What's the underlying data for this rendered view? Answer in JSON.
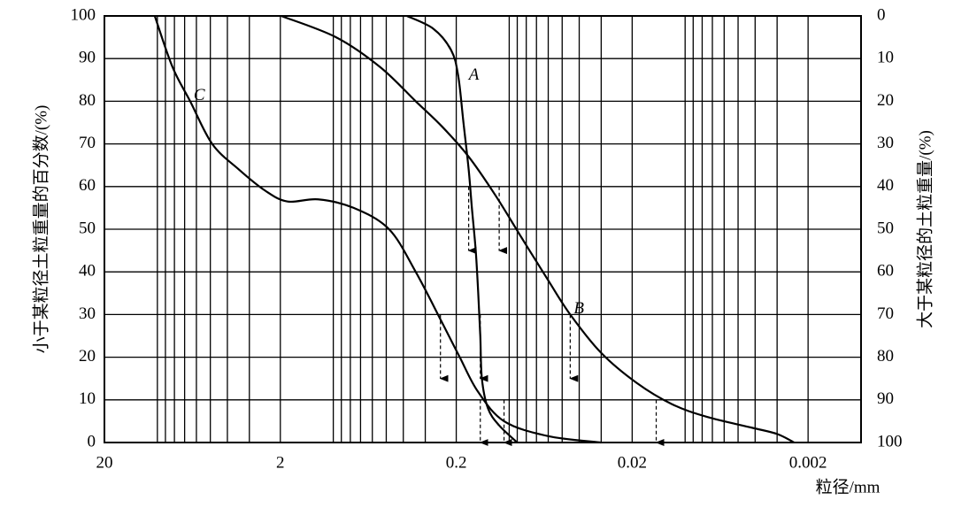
{
  "chart_data": {
    "type": "line",
    "x_label": "粒径/mm",
    "y_label": "小于某粒径土粒重量的百分数/(%)",
    "y2_label": "大于某粒径的土粒重量/(%)",
    "log_x": true,
    "grid": true,
    "color": "#000000",
    "xlim": [
      20,
      0.001
    ],
    "xticks": [
      20,
      2,
      0.2,
      0.02,
      0.002
    ],
    "ylim": [
      0,
      100
    ],
    "yticks": [
      0,
      10,
      20,
      30,
      40,
      50,
      60,
      70,
      80,
      90,
      100
    ],
    "y2lim": [
      100,
      0
    ],
    "y2ticks": [
      0,
      10,
      20,
      30,
      40,
      50,
      60,
      70,
      80,
      90,
      100
    ],
    "series": [
      {
        "name": "A",
        "x": [
          0.382,
          0.27,
          0.214,
          0.195,
          0.182,
          0.17,
          0.163,
          0.155,
          0.15,
          0.146,
          0.143,
          0.132,
          0.114,
          0.09
        ],
        "values": [
          100,
          97,
          92,
          86,
          75,
          64,
          55,
          45,
          35,
          25,
          15,
          8,
          4,
          0
        ]
      },
      {
        "name": "B",
        "x": [
          1.98,
          0.964,
          0.541,
          0.34,
          0.24,
          0.17,
          0.12,
          0.085,
          0.06,
          0.045,
          0.03,
          0.0189,
          0.0119,
          0.0075,
          0.0042,
          0.003,
          0.0024
        ],
        "values": [
          100,
          95,
          88,
          80,
          74,
          67,
          58,
          48,
          38,
          30,
          21,
          14,
          9,
          6,
          3.5,
          2,
          0
        ]
      },
      {
        "name": "C",
        "x": [
          10.35,
          8.2,
          6.51,
          4.88,
          3.44,
          2.43,
          1.82,
          1.22,
          0.766,
          0.482,
          0.34,
          0.24,
          0.191,
          0.151,
          0.107,
          0.06,
          0.03
        ],
        "values": [
          100,
          88,
          80,
          70,
          64,
          59,
          56.5,
          57,
          55,
          50,
          40,
          28,
          20,
          12,
          5,
          1.5,
          0
        ]
      }
    ],
    "arrows": [
      {
        "x": 0.17,
        "from": 60,
        "to": 45
      },
      {
        "x": 0.114,
        "from": 60,
        "to": 45
      },
      {
        "x": 0.246,
        "from": 30,
        "to": 15
      },
      {
        "x": 0.146,
        "from": 30,
        "to": 15
      },
      {
        "x": 0.045,
        "from": 30,
        "to": 15
      },
      {
        "x": 0.146,
        "from": 10,
        "to": 0
      },
      {
        "x": 0.107,
        "from": 10,
        "to": 0
      },
      {
        "x": 0.0146,
        "from": 10,
        "to": 0
      }
    ]
  }
}
